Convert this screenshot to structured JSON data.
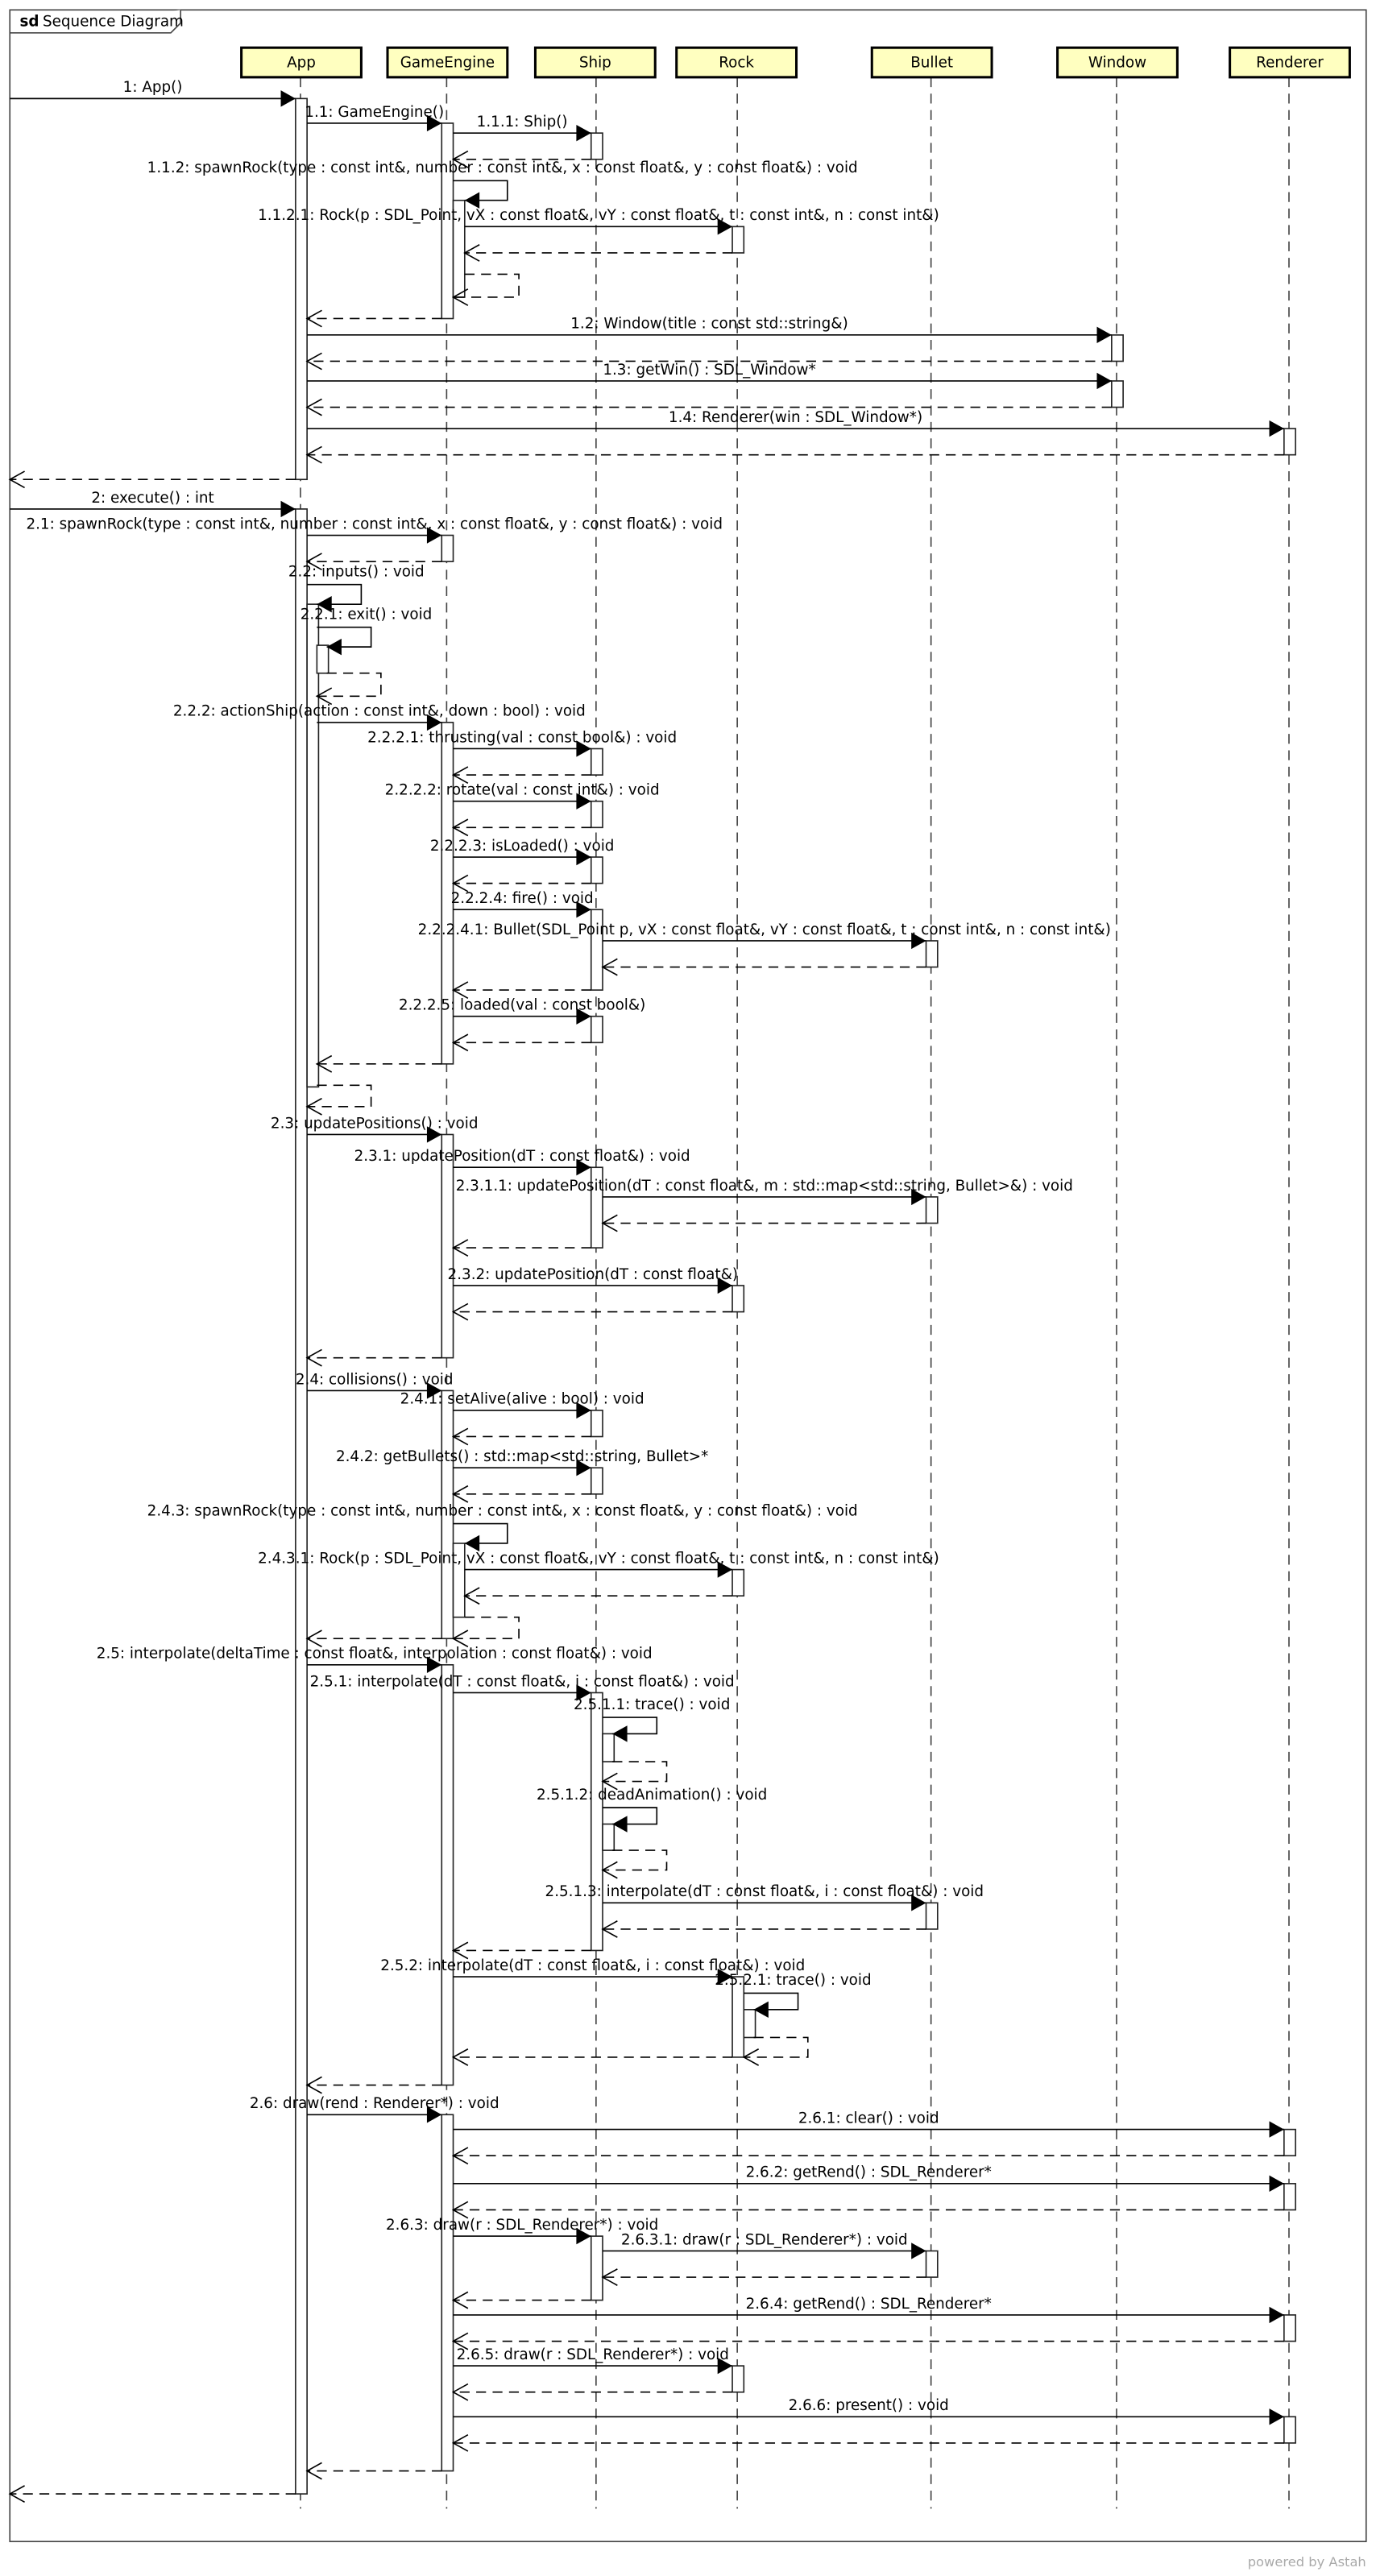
{
  "frame": {
    "kind": "sd",
    "title": "Sequence Diagram"
  },
  "lifelines": [
    "App",
    "GameEngine",
    "Ship",
    "Rock",
    "Bullet",
    "Window",
    "Renderer"
  ],
  "messages": [
    "1: App()",
    "1.1: GameEngine()",
    "1.1.1: Ship()",
    "1.1.2: spawnRock(type : const int&, number : const int&, x : const float&, y : const float&) : void",
    "1.1.2.1: Rock(p : SDL_Point, vX : const float&, vY : const float&, t : const int&, n : const int&)",
    "1.2: Window(title : const std::string&)",
    "1.3: getWin() : SDL_Window*",
    "1.4: Renderer(win : SDL_Window*)",
    "2: execute() : int",
    "2.1: spawnRock(type : const int&, number : const int&, x : const float&, y : const float&) : void",
    "2.2: inputs() : void",
    "2.2.1: exit() : void",
    "2.2.2: actionShip(action : const int&, down : bool) : void",
    "2.2.2.1: thrusting(val : const bool&) : void",
    "2.2.2.2: rotate(val : const int&) : void",
    "2.2.2.3: isLoaded() : void",
    "2.2.2.4: fire() : void",
    "2.2.2.4.1: Bullet(SDL_Point p, vX : const float&, vY : const float&, t : const int&, n : const int&)",
    "2.2.2.5: loaded(val : const bool&)",
    "2.3: updatePositions() : void",
    "2.3.1: updatePosition(dT : const float&) : void",
    "2.3.1.1: updatePosition(dT : const float&, m :  std::map<std::string, Bullet>&) : void",
    "2.3.2: updatePosition(dT : const float&)",
    "2.4: collisions() : void",
    "2.4.1: setAlive(alive : bool) : void",
    "2.4.2: getBullets() : std::map<std::string, Bullet>*",
    "2.4.3: spawnRock(type : const int&, number : const int&, x : const float&, y : const float&) : void",
    "2.4.3.1: Rock(p : SDL_Point, vX : const float&, vY : const float&, t : const int&, n : const int&)",
    "2.5: interpolate(deltaTime : const float&, interpolation : const float&) : void",
    "2.5.1: interpolate(dT : const float&, i : const float&) : void",
    "2.5.1.1: trace() : void",
    "2.5.1.2: deadAnimation() : void",
    "2.5.1.3: interpolate(dT : const float&, i : const float&) : void",
    "2.5.2: interpolate(dT : const float&, i : const float&) : void",
    "2.5.2.1: trace() : void",
    "2.6: draw(rend : Renderer*) : void",
    "2.6.1: clear() : void",
    "2.6.2: getRend() : SDL_Renderer*",
    "2.6.3: draw(r : SDL_Renderer*) : void",
    "2.6.3.1: draw(r : SDL_Renderer*) : void",
    "2.6.4: getRend() : SDL_Renderer*",
    "2.6.5: draw(r : SDL_Renderer*) : void",
    "2.6.6: present() : void"
  ],
  "footer": "powered by Astah"
}
